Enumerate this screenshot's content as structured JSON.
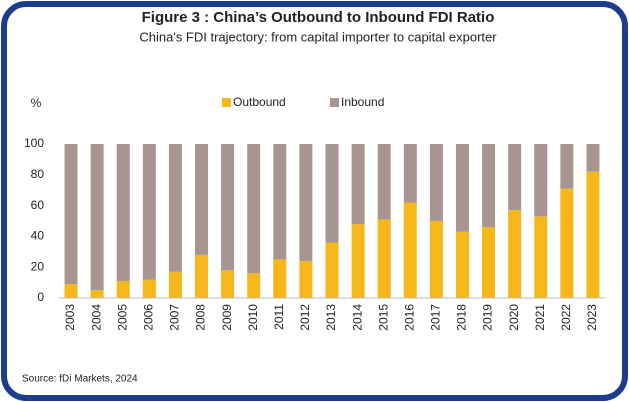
{
  "chart_data": {
    "type": "stacked_bar",
    "title": "Figure 3 : China’s Outbound to Inbound FDI Ratio",
    "subtitle": "China's FDI trajectory: from capital importer to capital exporter",
    "y_label": "%",
    "source": "Source: fDi Markets, 2024",
    "categories": [
      "2003",
      "2004",
      "2005",
      "2006",
      "2007",
      "2008",
      "2009",
      "2010",
      "2011",
      "2012",
      "2013",
      "2014",
      "2015",
      "2016",
      "2017",
      "2018",
      "2019",
      "2020",
      "2021",
      "2022",
      "2023"
    ],
    "series": [
      {
        "name": "Outbound",
        "color": "#f5b719",
        "values": [
          9,
          5,
          11,
          12,
          17,
          28,
          18,
          16,
          25,
          24,
          36,
          48,
          51,
          62,
          50,
          43,
          46,
          57,
          53,
          71,
          82
        ]
      },
      {
        "name": "Inbound",
        "color": "#a89592",
        "values": [
          91,
          95,
          89,
          88,
          83,
          72,
          82,
          84,
          75,
          76,
          64,
          52,
          49,
          38,
          50,
          57,
          54,
          43,
          47,
          29,
          18
        ]
      }
    ],
    "ylim": [
      0,
      100
    ],
    "yticks": [
      0,
      20,
      40,
      60,
      80,
      100
    ],
    "legend": "top"
  }
}
